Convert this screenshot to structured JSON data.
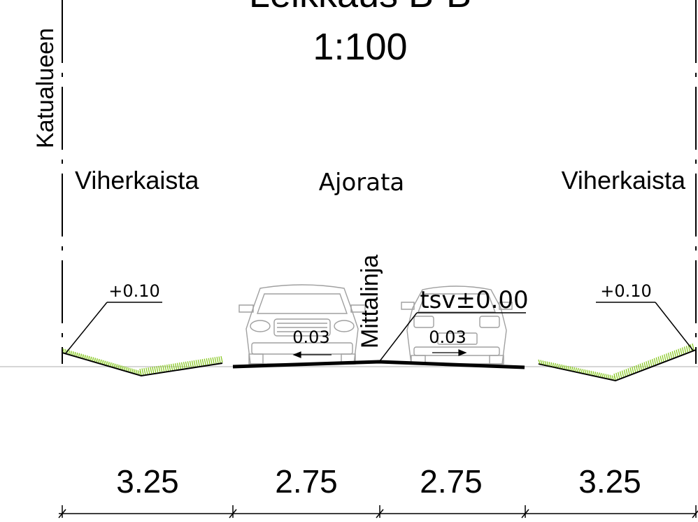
{
  "title": {
    "name": "Leikkaus B-B",
    "scale": "1:100"
  },
  "boundary_label": "Katualueen",
  "zones": {
    "left": "Viherkaista",
    "center": "Ajorata",
    "right": "Viherkaista"
  },
  "centerline_label": "Mittalinja",
  "levels": {
    "left": "+0.10",
    "right": "+0.10",
    "center": "tsv±0.00"
  },
  "slopes": {
    "left": "0.03",
    "right": "0.03"
  },
  "dimensions": [
    "3.25",
    "2.75",
    "2.75",
    "3.25"
  ],
  "colors": {
    "grass": "#8ac926",
    "line": "#000000",
    "car": "#9a9a9a"
  }
}
